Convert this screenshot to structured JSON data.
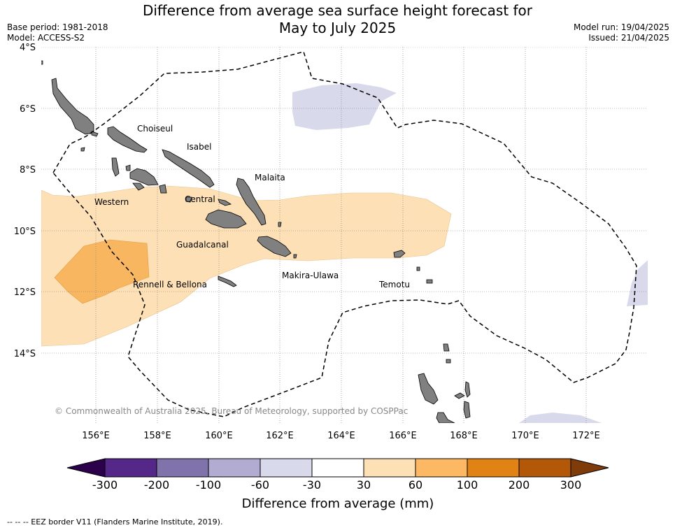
{
  "header": {
    "title_line1": "Difference from average sea surface height forecast for",
    "title_line2": "May to July 2025",
    "base_period": "Base period: 1981-2018",
    "model": "Model: ACCESS-S2",
    "model_run": "Model run: 19/04/2025",
    "issued": "Issued: 21/04/2025"
  },
  "map": {
    "lat_labels": [
      "4°S",
      "6°S",
      "8°S",
      "10°S",
      "12°S",
      "14°S"
    ],
    "lon_labels": [
      "156°E",
      "158°E",
      "160°E",
      "162°E",
      "164°E",
      "166°E",
      "168°E",
      "170°E",
      "172°E"
    ],
    "provinces": [
      "Choiseul",
      "Isabel",
      "Malaita",
      "Western",
      "Central",
      "Guadalcanal",
      "Makira-Ulawa",
      "Rennell & Bellona",
      "Temotu"
    ],
    "copyright": "© Commonwealth of Australia 2025, Bureau of Meteorology, supported by COSPPac",
    "colors": {
      "land": "#808080",
      "anom_30_60": "#fde0b6",
      "anom_60_100": "#f9b661",
      "anom_neg30_neg60": "#d8d9ea",
      "eez_line": "#000000"
    }
  },
  "colorbar": {
    "tick_labels": [
      "-300",
      "-200",
      "-100",
      "-60",
      "-30",
      "30",
      "60",
      "100",
      "200",
      "300"
    ],
    "colors": [
      "#2d004b",
      "#542788",
      "#8073ac",
      "#b2abd2",
      "#d8daeb",
      "#ffffff",
      "#fee0b6",
      "#fdb863",
      "#e08214",
      "#b35806",
      "#7f3b08"
    ],
    "label": "Difference from average (mm)"
  },
  "footer": {
    "eez_note": "-- -- -- EEZ border V11 (Flanders Marine Institute, 2019)."
  }
}
